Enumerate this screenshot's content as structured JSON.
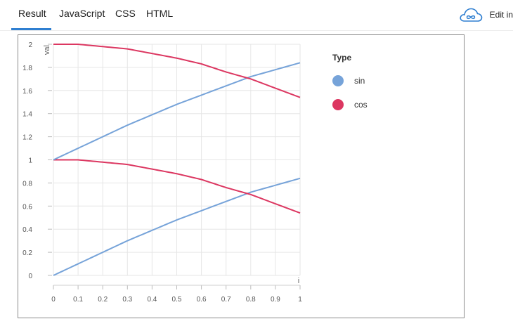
{
  "tabs": [
    {
      "label": "Result",
      "active": true
    },
    {
      "label": "JavaScript"
    },
    {
      "label": "CSS"
    },
    {
      "label": "HTML"
    }
  ],
  "edit": {
    "label": "Edit in",
    "icon": "cloud-infinity-icon"
  },
  "colors": {
    "sin": "#76a3d9",
    "cos": "#dc3761",
    "grid": "#e6e6e6",
    "accent": "#2f7fd1"
  },
  "chart_data": {
    "type": "line",
    "xlabel": "i",
    "ylabel": "val",
    "xlim": [
      0,
      1
    ],
    "ylim": [
      0,
      2
    ],
    "xticks": [
      "0",
      "0.1",
      "0.2",
      "0.3",
      "0.4",
      "0.5",
      "0.6",
      "0.7",
      "0.8",
      "0.9",
      "1"
    ],
    "yticks": [
      "0",
      "0.2",
      "0.4",
      "0.6",
      "0.8",
      "1",
      "1.2",
      "1.4",
      "1.6",
      "1.8",
      "2"
    ],
    "grid": true,
    "legend": {
      "title": "Type",
      "placement": "right",
      "entries": [
        "sin",
        "cos"
      ]
    },
    "x": [
      0,
      0.1,
      0.2,
      0.3,
      0.4,
      0.5,
      0.6,
      0.7,
      0.8,
      0.9,
      1.0
    ],
    "series": [
      {
        "name": "sin",
        "color": "#76a3d9",
        "values": [
          0,
          0.1,
          0.2,
          0.3,
          0.39,
          0.48,
          0.56,
          0.64,
          0.72,
          0.78,
          0.84
        ]
      },
      {
        "name": "cos",
        "color": "#dc3761",
        "values": [
          1.0,
          1.0,
          0.98,
          0.96,
          0.92,
          0.88,
          0.83,
          0.76,
          0.7,
          0.62,
          0.54
        ]
      },
      {
        "name": "sin",
        "color": "#76a3d9",
        "values": [
          1.0,
          1.1,
          1.2,
          1.3,
          1.39,
          1.48,
          1.56,
          1.64,
          1.72,
          1.78,
          1.84
        ]
      },
      {
        "name": "cos",
        "color": "#dc3761",
        "values": [
          2.0,
          2.0,
          1.98,
          1.96,
          1.92,
          1.88,
          1.83,
          1.76,
          1.7,
          1.62,
          1.54
        ]
      }
    ]
  }
}
